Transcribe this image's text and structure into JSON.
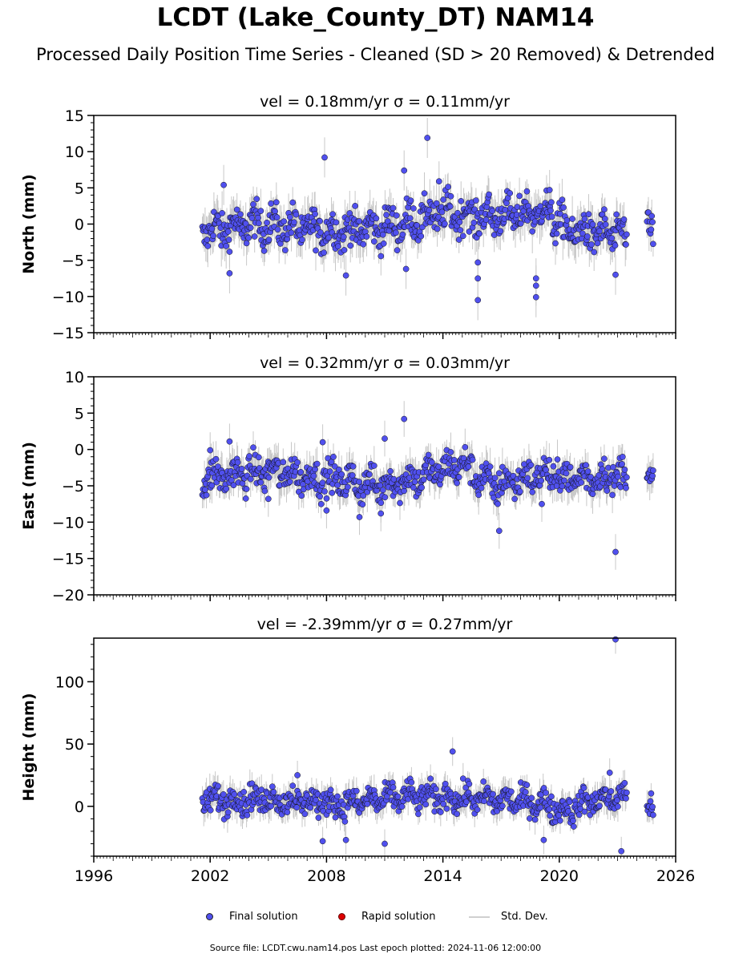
{
  "header": {
    "title": "LCDT (Lake_County_DT) NAM14",
    "subtitle": "Processed Daily Position Time Series - Cleaned (SD > 20 Removed) & Detrended"
  },
  "colors": {
    "final_solution": "#5050ee",
    "rapid_solution": "#dd0000",
    "std_dev": "#c8c8c8",
    "marker_edge": "#111111"
  },
  "legend": {
    "final_label": "Final solution",
    "rapid_label": "Rapid solution",
    "std_label": "Std. Dev."
  },
  "footer": {
    "text": "Source file: LCDT.cwu.nam14.pos  Last epoch plotted: 2024-11-06 12:00:00"
  },
  "chart_data": [
    {
      "type": "scatter",
      "title": "vel = 0.18mm/yr   σ = 0.11mm/yr",
      "ylabel": "North (mm)",
      "xlim": [
        1996,
        2026
      ],
      "ylim": [
        -15,
        15
      ],
      "yticks": [
        15,
        10,
        5,
        0,
        -5,
        -10,
        -15
      ],
      "ytick_labels": [
        "15",
        "10",
        "5",
        "0",
        "−5",
        "−10",
        "−15"
      ],
      "grid": false,
      "series_name": "Final solution",
      "data_span": [
        2001.6,
        2024.85
      ],
      "gap": [
        2023.5,
        2024.5
      ],
      "trend": [
        [
          2001.6,
          -1.0
        ],
        [
          2004.5,
          0.0
        ],
        [
          2008.0,
          -1.0
        ],
        [
          2011.0,
          -0.5
        ],
        [
          2014.0,
          1.5
        ],
        [
          2016.0,
          1.0
        ],
        [
          2018.5,
          1.5
        ],
        [
          2019.3,
          1.8
        ],
        [
          2020.5,
          -1.0
        ],
        [
          2023.4,
          -1.5
        ],
        [
          2024.6,
          0.5
        ],
        [
          2024.85,
          0.0
        ]
      ],
      "scatter": 1.8,
      "outliers": [
        [
          2007.9,
          9.2
        ],
        [
          2012.0,
          7.4
        ],
        [
          2013.2,
          11.9
        ],
        [
          2002.7,
          5.4
        ],
        [
          2013.8,
          5.9
        ],
        [
          2015.8,
          -10.5
        ],
        [
          2015.8,
          -7.5
        ],
        [
          2015.8,
          -5.3
        ],
        [
          2018.8,
          -7.5
        ],
        [
          2018.8,
          -8.5
        ],
        [
          2018.8,
          -10.1
        ],
        [
          2022.9,
          -7.0
        ],
        [
          2009.0,
          -7.1
        ],
        [
          2003.0,
          -6.8
        ],
        [
          2012.1,
          -6.2
        ],
        [
          2019.5,
          4.7
        ]
      ]
    },
    {
      "type": "scatter",
      "title": "vel = 0.32mm/yr   σ = 0.03mm/yr",
      "ylabel": "East (mm)",
      "xlim": [
        1996,
        2026
      ],
      "ylim": [
        -20,
        10
      ],
      "yticks": [
        10,
        5,
        0,
        -5,
        -10,
        -15,
        -20
      ],
      "ytick_labels": [
        "10",
        "5",
        "0",
        "−5",
        "−10",
        "−15",
        "−20"
      ],
      "grid": false,
      "series_name": "Final solution",
      "data_span": [
        2001.6,
        2024.85
      ],
      "gap": [
        2023.5,
        2024.5
      ],
      "trend": [
        [
          2001.6,
          -4.0
        ],
        [
          2005.0,
          -3.0
        ],
        [
          2008.0,
          -4.0
        ],
        [
          2010.5,
          -5.0
        ],
        [
          2012.5,
          -4.0
        ],
        [
          2015.0,
          -2.0
        ],
        [
          2016.5,
          -5.0
        ],
        [
          2019.0,
          -3.5
        ],
        [
          2021.0,
          -4.0
        ],
        [
          2023.4,
          -3.5
        ],
        [
          2024.6,
          -3.0
        ],
        [
          2024.85,
          -3.5
        ]
      ],
      "scatter": 1.6,
      "outliers": [
        [
          2012.0,
          4.2
        ],
        [
          2011.0,
          1.5
        ],
        [
          2022.9,
          -14.1
        ],
        [
          2016.9,
          -11.2
        ],
        [
          2009.7,
          -9.3
        ],
        [
          2008.0,
          -8.4
        ],
        [
          2010.8,
          -8.8
        ],
        [
          2019.1,
          -7.5
        ],
        [
          2005.0,
          -6.8
        ],
        [
          2002.0,
          -0.1
        ],
        [
          2003.0,
          1.1
        ],
        [
          2007.8,
          1.0
        ]
      ]
    },
    {
      "type": "scatter",
      "title": "vel = -2.39mm/yr   σ = 0.27mm/yr",
      "ylabel": "Height (mm)",
      "xlim": [
        1996,
        2026
      ],
      "ylim": [
        -40,
        135
      ],
      "yticks": [
        100,
        50,
        0
      ],
      "ytick_labels": [
        "100",
        "50",
        "0"
      ],
      "grid": false,
      "series_name": "Final solution",
      "data_span": [
        2001.6,
        2024.85
      ],
      "gap": [
        2023.5,
        2024.5
      ],
      "trend": [
        [
          2001.6,
          5.0
        ],
        [
          2005.0,
          6.0
        ],
        [
          2009.0,
          2.0
        ],
        [
          2012.0,
          8.0
        ],
        [
          2016.0,
          6.0
        ],
        [
          2019.0,
          3.0
        ],
        [
          2020.3,
          -4.0
        ],
        [
          2021.5,
          4.0
        ],
        [
          2023.4,
          8.0
        ],
        [
          2024.6,
          5.0
        ],
        [
          2024.85,
          2.0
        ]
      ],
      "scatter": 7.5,
      "outliers": [
        [
          2022.9,
          134.0
        ],
        [
          2014.5,
          44.0
        ],
        [
          2023.2,
          -36.0
        ],
        [
          2011.0,
          -30.0
        ],
        [
          2007.8,
          -28.0
        ],
        [
          2009.0,
          -27.0
        ],
        [
          2019.2,
          -27.0
        ],
        [
          2022.6,
          27.0
        ],
        [
          2006.5,
          25.0
        ]
      ]
    }
  ],
  "xaxis": {
    "ticks": [
      1996,
      2002,
      2008,
      2014,
      2020,
      2026
    ],
    "tick_labels": [
      "1996",
      "2002",
      "2008",
      "2014",
      "2020",
      "2026"
    ]
  }
}
